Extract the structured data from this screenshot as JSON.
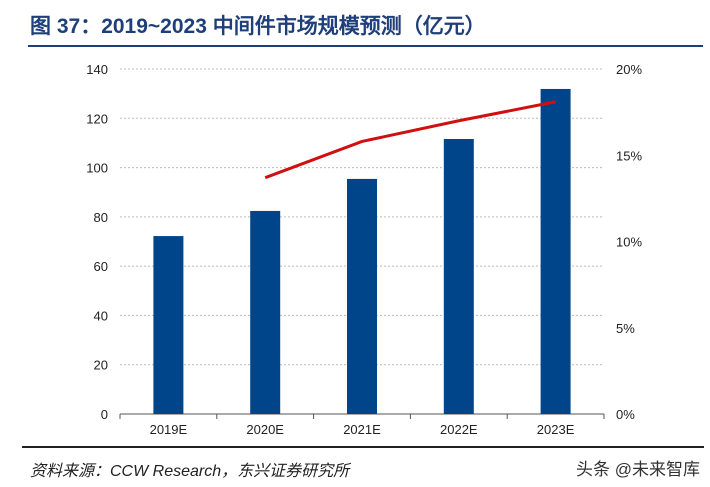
{
  "chart_data": {
    "type": "bar+line",
    "title": "图 37：2019~2023 中间件市场规模预测（亿元）",
    "categories": [
      "2019E",
      "2020E",
      "2021E",
      "2022E",
      "2023E"
    ],
    "series": [
      {
        "type": "bar",
        "axis": "left",
        "color": "#00448a",
        "values": [
          72.2,
          82.4,
          95.4,
          111.6,
          131.9
        ]
      },
      {
        "type": "line",
        "axis": "right",
        "color": "#d01010",
        "values": [
          null,
          13.7,
          15.8,
          17.0,
          18.1
        ]
      }
    ],
    "left_axis": {
      "ylim": [
        0,
        140
      ],
      "ticks": [
        "0",
        "20",
        "40",
        "60",
        "80",
        "100",
        "120",
        "140"
      ]
    },
    "right_axis": {
      "ylim": [
        0,
        20
      ],
      "ticks": [
        "0%",
        "5%",
        "10%",
        "15%",
        "20%"
      ]
    },
    "grid": true,
    "legend": "none"
  },
  "footer": {
    "source": "资料来源：CCW Research，东兴证券研究所",
    "watermark": "头条 @未来智库"
  }
}
